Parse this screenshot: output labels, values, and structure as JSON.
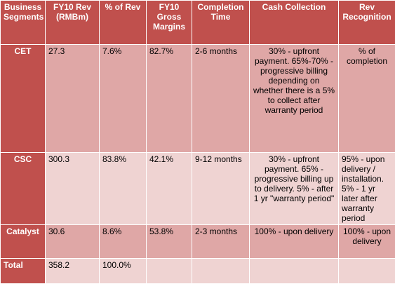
{
  "columns": [
    "Business Segments",
    "FY10 Rev (RMBm)",
    "% of Rev",
    "FY10 Gross Margins",
    "Completion Time",
    "Cash Collection",
    "Rev Recognition"
  ],
  "rows": [
    {
      "segment": "CET",
      "revenue": "27.3",
      "pct_rev": "7.6%",
      "gross_margin": "82.7%",
      "completion_time": "2-6 months",
      "cash_collection": "30% - upfront payment. 65%-70% - progressive billing depending on whether there is a 5% to collect after warranty period",
      "rev_recognition": "% of completion"
    },
    {
      "segment": "CSC",
      "revenue": "300.3",
      "pct_rev": "83.8%",
      "gross_margin": "42.1%",
      "completion_time": "9-12 months",
      "cash_collection": "30% - upfront payment. 65% - progressive billing up to delivery. 5% - after 1 yr \"warranty period\"",
      "rev_recognition": "95% - upon delivery / installation. 5% - 1 yr later after warranty period"
    },
    {
      "segment": "Catalyst",
      "revenue": "30.6",
      "pct_rev": "8.6%",
      "gross_margin": "53.8%",
      "completion_time": "2-3 months",
      "cash_collection": "100% - upon delivery",
      "rev_recognition": "100% - upon delivery"
    },
    {
      "segment": "Total",
      "revenue": "358.2",
      "pct_rev": "100.0%",
      "gross_margin": "",
      "completion_time": "",
      "cash_collection": "",
      "rev_recognition": ""
    }
  ]
}
